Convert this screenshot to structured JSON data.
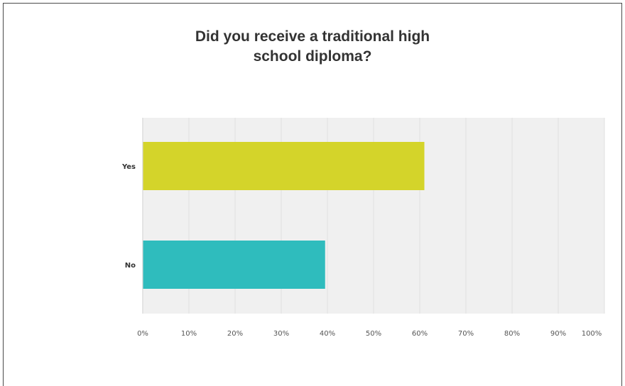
{
  "chart_data": {
    "type": "bar",
    "orientation": "horizontal",
    "title_lines": [
      "Did you receive a traditional high",
      "school diploma?"
    ],
    "categories": [
      "Yes",
      "No"
    ],
    "values": [
      61,
      39.5
    ],
    "xlim": [
      0,
      100
    ],
    "xticks": [
      "0%",
      "10%",
      "20%",
      "30%",
      "40%",
      "50%",
      "60%",
      "70%",
      "80%",
      "90%",
      "100%"
    ],
    "grid": true,
    "legend": "none",
    "colors": [
      "#d4d42a",
      "#2fbcbd"
    ]
  },
  "colors": {
    "plot_background": "#f0f0f0",
    "gridline": "#e0e0e0"
  }
}
